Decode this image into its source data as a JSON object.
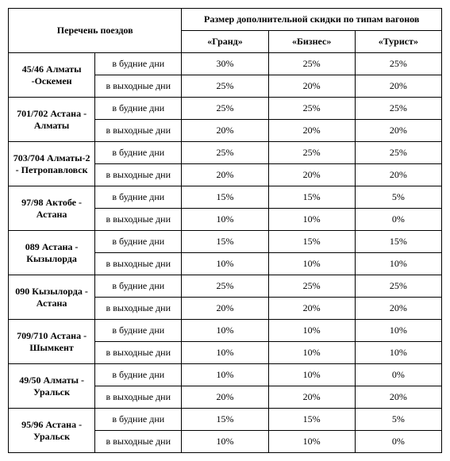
{
  "headers": {
    "trains": "Перечень поездов",
    "discount_header": "Размер дополнительной скидки по типам вагонов",
    "grand": "«Гранд»",
    "business": "«Бизнес»",
    "tourist": "«Турист»"
  },
  "day_labels": {
    "weekday": "в будние дни",
    "weekend": "в выходные дни"
  },
  "trains": [
    {
      "name": "45/46 Алматы -Оскемен",
      "weekday": {
        "grand": "30%",
        "business": "25%",
        "tourist": "25%"
      },
      "weekend": {
        "grand": "25%",
        "business": "20%",
        "tourist": "20%"
      }
    },
    {
      "name": "701/702 Астана - Алматы",
      "weekday": {
        "grand": "25%",
        "business": "25%",
        "tourist": "25%"
      },
      "weekend": {
        "grand": "20%",
        "business": "20%",
        "tourist": "20%"
      }
    },
    {
      "name": "703/704 Алматы-2 - Петропавловск",
      "weekday": {
        "grand": "25%",
        "business": "25%",
        "tourist": "25%"
      },
      "weekend": {
        "grand": "20%",
        "business": "20%",
        "tourist": "20%"
      }
    },
    {
      "name": "97/98 Актобе - Астана",
      "weekday": {
        "grand": "15%",
        "business": "15%",
        "tourist": "5%"
      },
      "weekend": {
        "grand": "10%",
        "business": "10%",
        "tourist": "0%"
      }
    },
    {
      "name": "089 Астана - Кызылорда",
      "weekday": {
        "grand": "15%",
        "business": "15%",
        "tourist": "15%"
      },
      "weekend": {
        "grand": "10%",
        "business": "10%",
        "tourist": "10%"
      }
    },
    {
      "name": "090 Кызылорда - Астана",
      "weekday": {
        "grand": "25%",
        "business": "25%",
        "tourist": "25%"
      },
      "weekend": {
        "grand": "20%",
        "business": "20%",
        "tourist": "20%"
      }
    },
    {
      "name": "709/710 Астана - Шымкент",
      "weekday": {
        "grand": "10%",
        "business": "10%",
        "tourist": "10%"
      },
      "weekend": {
        "grand": "10%",
        "business": "10%",
        "tourist": "10%"
      }
    },
    {
      "name": "49/50 Алматы - Уральск",
      "weekday": {
        "grand": "10%",
        "business": "10%",
        "tourist": "0%"
      },
      "weekend": {
        "grand": "20%",
        "business": "20%",
        "tourist": "20%"
      }
    },
    {
      "name": "95/96 Астана - Уральск",
      "weekday": {
        "grand": "15%",
        "business": "15%",
        "tourist": "5%"
      },
      "weekend": {
        "grand": "10%",
        "business": "10%",
        "tourist": "0%"
      }
    }
  ]
}
